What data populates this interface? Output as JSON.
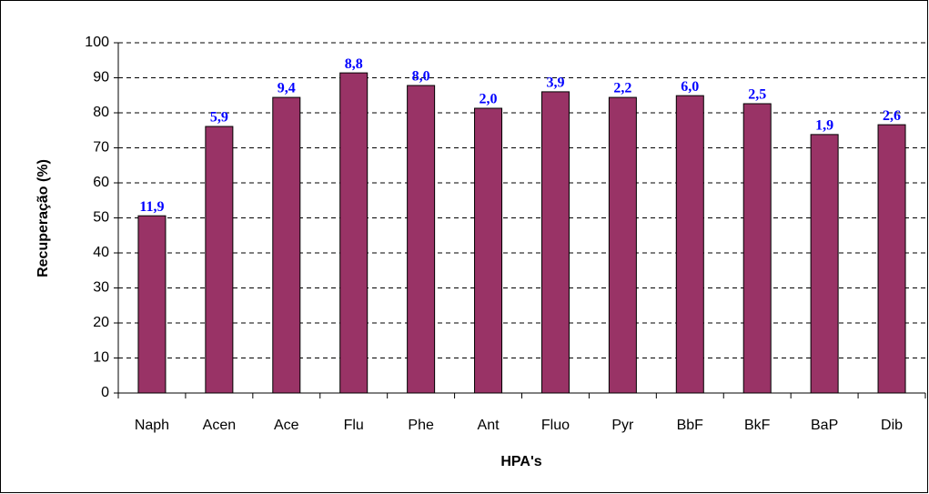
{
  "chart_data": {
    "type": "bar",
    "x_label": "HPA's",
    "y_label": "Recuperação (%)",
    "categories": [
      "Naph",
      "Acen",
      "Ace",
      "Flu",
      "Phe",
      "Ant",
      "Fluo",
      "Pyr",
      "BbF",
      "BkF",
      "BaP",
      "Dib"
    ],
    "values": [
      50.6,
      76.1,
      84.4,
      91.4,
      87.8,
      81.3,
      86.0,
      84.4,
      84.9,
      82.6,
      73.8,
      76.6
    ],
    "annotations": [
      "11,9",
      "5,9",
      "9,4",
      "8,8",
      "8,0",
      "2,0",
      "3,9",
      "2,2",
      "6,0",
      "2,5",
      "1,9",
      "2,6"
    ],
    "color": "#993366",
    "ylim": [
      0,
      100
    ],
    "yticks": [
      0,
      10,
      20,
      30,
      40,
      50,
      60,
      70,
      80,
      90,
      100
    ],
    "grid": true
  }
}
